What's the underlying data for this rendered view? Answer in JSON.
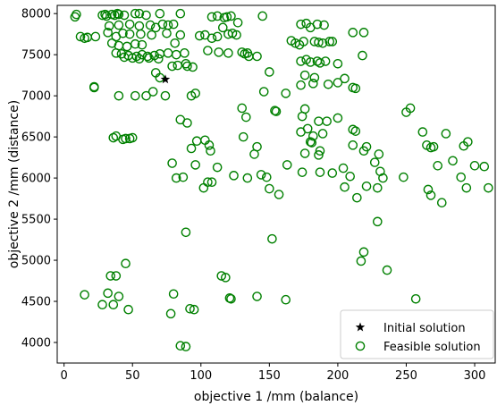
{
  "chart_data": {
    "type": "scatter",
    "title": "",
    "xlabel": "objective 1 /mm (balance)",
    "ylabel": "objective 2 /mm (distance)",
    "xlim": [
      -5,
      315
    ],
    "ylim": [
      3750,
      8100
    ],
    "xticks": [
      0,
      50,
      100,
      150,
      200,
      250,
      300
    ],
    "yticks": [
      4000,
      4500,
      5000,
      5500,
      6000,
      6500,
      7000,
      7500,
      8000
    ],
    "grid": false,
    "legend_position": "lower-right",
    "colors": {
      "feasible": "#008000",
      "initial": "#000000"
    },
    "series": [
      {
        "name": "Initial solution",
        "marker": "star",
        "points": [
          [
            74,
            7200
          ]
        ]
      },
      {
        "name": "Feasible solution",
        "marker": "open-circle",
        "points": [
          [
            8,
            7960
          ],
          [
            9,
            7990
          ],
          [
            12,
            7720
          ],
          [
            15,
            7700
          ],
          [
            17,
            7710
          ],
          [
            23,
            7720
          ],
          [
            22,
            7100
          ],
          [
            22,
            7110
          ],
          [
            28,
            7980
          ],
          [
            30,
            7990
          ],
          [
            31,
            7970
          ],
          [
            35,
            7990
          ],
          [
            37,
            7980
          ],
          [
            39,
            8000
          ],
          [
            40,
            7990
          ],
          [
            44,
            7980
          ],
          [
            52,
            8000
          ],
          [
            55,
            8000
          ],
          [
            60,
            7980
          ],
          [
            70,
            8000
          ],
          [
            85,
            8000
          ],
          [
            33,
            7850
          ],
          [
            40,
            7860
          ],
          [
            48,
            7870
          ],
          [
            55,
            7850
          ],
          [
            63,
            7860
          ],
          [
            72,
            7870
          ],
          [
            76,
            7860
          ],
          [
            80,
            7870
          ],
          [
            67,
            7830
          ],
          [
            32,
            7770
          ],
          [
            38,
            7720
          ],
          [
            43,
            7760
          ],
          [
            48,
            7750
          ],
          [
            56,
            7750
          ],
          [
            64,
            7740
          ],
          [
            75,
            7760
          ],
          [
            85,
            7740
          ],
          [
            35,
            7640
          ],
          [
            40,
            7610
          ],
          [
            46,
            7600
          ],
          [
            52,
            7630
          ],
          [
            57,
            7620
          ],
          [
            81,
            7640
          ],
          [
            38,
            7520
          ],
          [
            42,
            7510
          ],
          [
            47,
            7490
          ],
          [
            53,
            7480
          ],
          [
            57,
            7500
          ],
          [
            61,
            7480
          ],
          [
            66,
            7490
          ],
          [
            70,
            7510
          ],
          [
            76,
            7520
          ],
          [
            82,
            7500
          ],
          [
            88,
            7520
          ],
          [
            44,
            7470
          ],
          [
            50,
            7460
          ],
          [
            55,
            7450
          ],
          [
            62,
            7460
          ],
          [
            69,
            7450
          ],
          [
            79,
            7360
          ],
          [
            83,
            7370
          ],
          [
            89,
            7390
          ],
          [
            67,
            7280
          ],
          [
            70,
            7220
          ],
          [
            74,
            7000
          ],
          [
            93,
            7000
          ],
          [
            90,
            7360
          ],
          [
            94,
            7350
          ],
          [
            99,
            7730
          ],
          [
            103,
            7740
          ],
          [
            108,
            7960
          ],
          [
            112,
            7970
          ],
          [
            117,
            7950
          ],
          [
            119,
            7960
          ],
          [
            122,
            7970
          ],
          [
            127,
            7890
          ],
          [
            116,
            7830
          ],
          [
            120,
            7750
          ],
          [
            123,
            7760
          ],
          [
            126,
            7740
          ],
          [
            112,
            7720
          ],
          [
            108,
            7700
          ],
          [
            105,
            7550
          ],
          [
            113,
            7530
          ],
          [
            120,
            7520
          ],
          [
            130,
            7530
          ],
          [
            132,
            7510
          ],
          [
            134,
            7520
          ],
          [
            141,
            7480
          ],
          [
            135,
            7480
          ],
          [
            145,
            7970
          ],
          [
            166,
            7670
          ],
          [
            169,
            7640
          ],
          [
            175,
            7660
          ],
          [
            172,
            7620
          ],
          [
            173,
            7870
          ],
          [
            177,
            7880
          ],
          [
            185,
            7870
          ],
          [
            190,
            7860
          ],
          [
            180,
            7830
          ],
          [
            183,
            7660
          ],
          [
            186,
            7650
          ],
          [
            189,
            7640
          ],
          [
            194,
            7660
          ],
          [
            196,
            7660
          ],
          [
            173,
            7420
          ],
          [
            177,
            7440
          ],
          [
            180,
            7410
          ],
          [
            185,
            7420
          ],
          [
            187,
            7400
          ],
          [
            191,
            7420
          ],
          [
            183,
            7220
          ],
          [
            176,
            7250
          ],
          [
            173,
            7130
          ],
          [
            182,
            7150
          ],
          [
            193,
            7140
          ],
          [
            200,
            7160
          ],
          [
            205,
            7210
          ],
          [
            211,
            7770
          ],
          [
            219,
            7770
          ],
          [
            213,
            7090
          ],
          [
            218,
            7490
          ],
          [
            200,
            7390
          ],
          [
            211,
            7100
          ],
          [
            146,
            7050
          ],
          [
            162,
            7030
          ],
          [
            150,
            7290
          ],
          [
            155,
            6810
          ],
          [
            154,
            6820
          ],
          [
            176,
            6840
          ],
          [
            178,
            6600
          ],
          [
            174,
            6750
          ],
          [
            186,
            6690
          ],
          [
            192,
            6690
          ],
          [
            173,
            6560
          ],
          [
            181,
            6430
          ],
          [
            189,
            6540
          ],
          [
            200,
            6730
          ],
          [
            176,
            6300
          ],
          [
            186,
            6280
          ],
          [
            180,
            6440
          ],
          [
            187,
            6330
          ],
          [
            182,
            6510
          ],
          [
            130,
            6850
          ],
          [
            133,
            6740
          ],
          [
            131,
            6500
          ],
          [
            139,
            6290
          ],
          [
            141,
            6380
          ],
          [
            144,
            6040
          ],
          [
            148,
            6010
          ],
          [
            150,
            5870
          ],
          [
            157,
            5800
          ],
          [
            163,
            6160
          ],
          [
            174,
            6070
          ],
          [
            187,
            6070
          ],
          [
            196,
            6060
          ],
          [
            204,
            6120
          ],
          [
            209,
            6020
          ],
          [
            211,
            6590
          ],
          [
            213,
            6570
          ],
          [
            211,
            6400
          ],
          [
            219,
            6330
          ],
          [
            221,
            6380
          ],
          [
            227,
            6190
          ],
          [
            230,
            6290
          ],
          [
            231,
            6080
          ],
          [
            233,
            6000
          ],
          [
            221,
            5900
          ],
          [
            229,
            5880
          ],
          [
            205,
            5890
          ],
          [
            214,
            5760
          ],
          [
            248,
            6010
          ],
          [
            250,
            6800
          ],
          [
            253,
            6850
          ],
          [
            262,
            6560
          ],
          [
            265,
            6400
          ],
          [
            270,
            6380
          ],
          [
            268,
            6370
          ],
          [
            273,
            6150
          ],
          [
            279,
            6540
          ],
          [
            284,
            6210
          ],
          [
            292,
            6390
          ],
          [
            295,
            6440
          ],
          [
            300,
            6150
          ],
          [
            307,
            6140
          ],
          [
            290,
            6010
          ],
          [
            294,
            5880
          ],
          [
            310,
            5880
          ],
          [
            266,
            5860
          ],
          [
            276,
            5700
          ],
          [
            268,
            5790
          ],
          [
            90,
            6670
          ],
          [
            85,
            6710
          ],
          [
            93,
            6360
          ],
          [
            97,
            6450
          ],
          [
            96,
            6160
          ],
          [
            103,
            6460
          ],
          [
            106,
            6400
          ],
          [
            107,
            6330
          ],
          [
            102,
            5880
          ],
          [
            105,
            5950
          ],
          [
            108,
            5950
          ],
          [
            112,
            6130
          ],
          [
            124,
            6030
          ],
          [
            134,
            6000
          ],
          [
            79,
            6180
          ],
          [
            82,
            6000
          ],
          [
            87,
            6010
          ],
          [
            45,
            6480
          ],
          [
            48,
            6480
          ],
          [
            50,
            6490
          ],
          [
            36,
            6490
          ],
          [
            43,
            6470
          ],
          [
            38,
            6510
          ],
          [
            40,
            7000
          ],
          [
            52,
            7000
          ],
          [
            60,
            7000
          ],
          [
            65,
            7050
          ],
          [
            96,
            7030
          ],
          [
            89,
            5340
          ],
          [
            80,
            4590
          ],
          [
            78,
            4350
          ],
          [
            92,
            4410
          ],
          [
            95,
            4400
          ],
          [
            115,
            4810
          ],
          [
            118,
            4790
          ],
          [
            121,
            4540
          ],
          [
            122,
            4530
          ],
          [
            141,
            4560
          ],
          [
            152,
            5260
          ],
          [
            162,
            4520
          ],
          [
            217,
            4990
          ],
          [
            219,
            5100
          ],
          [
            229,
            5470
          ],
          [
            236,
            4880
          ],
          [
            257,
            4530
          ],
          [
            15,
            4580
          ],
          [
            34,
            4810
          ],
          [
            38,
            4810
          ],
          [
            45,
            4960
          ],
          [
            40,
            4560
          ],
          [
            47,
            4400
          ],
          [
            28,
            4460
          ],
          [
            32,
            4600
          ],
          [
            36,
            4460
          ],
          [
            85,
            3960
          ],
          [
            89,
            3950
          ]
        ]
      }
    ]
  }
}
